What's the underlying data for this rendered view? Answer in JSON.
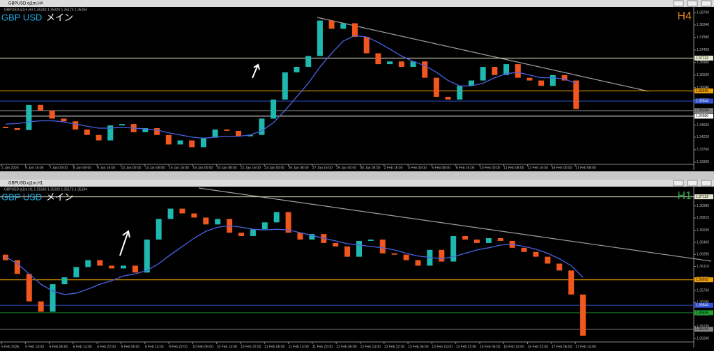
{
  "chart_data": [
    {
      "type": "candlestick",
      "window_title": "GBPUSD.oj1m,H4",
      "info": "GBPUSD.oj1m,H4  1.35243 1.35320 1.35173 1.35194",
      "symbol": "GBP USD",
      "label": "メイン",
      "timeframe": "H4",
      "timeframe_color": "#e08a1e",
      "up_color": "#1fb8b0",
      "down_color": "#f0561e",
      "ma_color": "#4a62e0",
      "prices": [
        1.346,
        1.3455,
        1.3448,
        1.354,
        1.352,
        1.349,
        1.348,
        1.345,
        1.343,
        1.341,
        1.3465,
        1.347,
        1.344,
        1.3455,
        1.343,
        1.3395,
        1.341,
        1.3385,
        1.342,
        1.345,
        1.3445,
        1.3425,
        1.343,
        1.349,
        1.356,
        1.366,
        1.368,
        1.372,
        1.385,
        1.382,
        1.384,
        1.379,
        1.373,
        1.369,
        1.37,
        1.368,
        1.37,
        1.364,
        1.357,
        1.356,
        1.361,
        1.363,
        1.368,
        1.365,
        1.369,
        1.364,
        1.363,
        1.361,
        1.365,
        1.363,
        1.3525
      ],
      "ma": [
        1.347,
        1.3472,
        1.3478,
        1.3482,
        1.3482,
        1.3478,
        1.347,
        1.3462,
        1.3455,
        1.3455,
        1.3458,
        1.3455,
        1.3452,
        1.3448,
        1.3438,
        1.343,
        1.3422,
        1.3418,
        1.3422,
        1.3425,
        1.3425,
        1.343,
        1.3445,
        1.3475,
        1.352,
        1.357,
        1.362,
        1.368,
        1.373,
        1.3775,
        1.3795,
        1.379,
        1.377,
        1.3745,
        1.372,
        1.37,
        1.3685,
        1.366,
        1.363,
        1.361,
        1.361,
        1.362,
        1.364,
        1.3655,
        1.366,
        1.365,
        1.364,
        1.364,
        1.3635,
        1.362
      ],
      "ylim": [
        1.3322,
        1.39
      ],
      "yticks": [
        {
          "value": 1.3879,
          "label": "1.38790"
        },
        {
          "value": 1.3834,
          "label": "1.38340"
        },
        {
          "value": 1.3788,
          "label": "1.37880"
        },
        {
          "value": 1.3742,
          "label": "1.37420"
        },
        {
          "value": 1.3696,
          "label": "1.36960"
        },
        {
          "value": 1.365,
          "label": "1.36500"
        },
        {
          "value": 1.3604,
          "label": "1.36040"
        },
        {
          "value": 1.3558,
          "label": "1.35580"
        },
        {
          "value": 1.3512,
          "label": "1.35120"
        },
        {
          "value": 1.3466,
          "label": "1.34660"
        },
        {
          "value": 1.3422,
          "label": "1.34220"
        },
        {
          "value": 1.3376,
          "label": "1.33760"
        },
        {
          "value": 1.333,
          "label": "1.33300"
        }
      ],
      "levels": [
        {
          "value": 1.37122,
          "label": "1.37122",
          "color": "#e8e8d0"
        },
        {
          "value": 1.35915,
          "label": "1.35915",
          "color": "#f0a000"
        },
        {
          "value": 1.35544,
          "label": "1.35544",
          "color": "#3050d0"
        },
        {
          "value": 1.35194,
          "label": "1.35194",
          "color": "#808080"
        },
        {
          "value": 1.3499,
          "label": "1.34990",
          "color": "#ffffff"
        }
      ],
      "x_labels": [
        "2 Jan 2026",
        "5 Jan 16:00",
        "7 Jan 00:00",
        "8 Jan 08:00",
        "9 Jan 16:00",
        "13 Jan 00:00",
        "14 Jan 08:00",
        "15 Jan 16:00",
        "19 Jan 00:00",
        "20 Jan 08:00",
        "21 Jan 16:00",
        "23 Jan 00:00",
        "26 Jan 08:00",
        "27 Jan 16:00",
        "29 Jan 00:00",
        "30 Jan 08:00",
        "2 Feb 16:00",
        "4 Feb 00:00",
        "5 Feb 08:00",
        "6 Feb 16:00",
        "10 Feb 00:00",
        "11 Feb 08:00",
        "12 Feb 16:00",
        "16 Feb 00:00",
        "17 Feb 08:00"
      ]
    },
    {
      "type": "candlestick",
      "window_title": "GBPUSD.oj1m,H1",
      "info": "GBPUSD.oj1m,H1  1.35243 1.35320 1.35173 1.35194",
      "symbol": "GBP USD",
      "label": "メイン",
      "timeframe": "H1",
      "timeframe_color": "#2fb04a",
      "up_color": "#1fb8b0",
      "down_color": "#f0561e",
      "ma_color": "#4a62e0",
      "prices": [
        1.3628,
        1.362,
        1.36,
        1.356,
        1.3545,
        1.3585,
        1.3595,
        1.361,
        1.362,
        1.3612,
        1.3608,
        1.3612,
        1.3602,
        1.365,
        1.368,
        1.3695,
        1.3688,
        1.3682,
        1.3672,
        1.368,
        1.366,
        1.3655,
        1.3665,
        1.3675,
        1.369,
        1.366,
        1.365,
        1.3658,
        1.3645,
        1.364,
        1.3625,
        1.3648,
        1.365,
        1.363,
        1.3628,
        1.362,
        1.3612,
        1.3635,
        1.3618,
        1.3655,
        1.365,
        1.3645,
        1.3652,
        1.3648,
        1.3638,
        1.3632,
        1.3625,
        1.3615,
        1.3605,
        1.357,
        1.351
      ],
      "ma": [
        1.3625,
        1.3615,
        1.36,
        1.3585,
        1.3575,
        1.357,
        1.3572,
        1.3578,
        1.3585,
        1.359,
        1.3597,
        1.36,
        1.3605,
        1.3615,
        1.3628,
        1.364,
        1.3652,
        1.3662,
        1.3668,
        1.367,
        1.3668,
        1.3665,
        1.3664,
        1.3665,
        1.3664,
        1.366,
        1.3656,
        1.3652,
        1.3648,
        1.3644,
        1.3642,
        1.364,
        1.3638,
        1.3635,
        1.363,
        1.3626,
        1.3624,
        1.3622,
        1.3625,
        1.363,
        1.3635,
        1.3638,
        1.3642,
        1.3643,
        1.364,
        1.3636,
        1.363,
        1.3622,
        1.3612,
        1.3595
      ],
      "ylim": [
        1.3501,
        1.3727
      ],
      "yticks": [
        {
          "value": 1.3699,
          "label": "1.36990"
        },
        {
          "value": 1.36815,
          "label": "1.36815"
        },
        {
          "value": 1.36635,
          "label": "1.36635"
        },
        {
          "value": 1.3646,
          "label": "1.36460"
        },
        {
          "value": 1.36285,
          "label": "1.36285"
        },
        {
          "value": 1.3611,
          "label": "1.36110"
        },
        {
          "value": 1.35935,
          "label": "1.35935"
        },
        {
          "value": 1.3576,
          "label": "1.35760"
        },
        {
          "value": 1.35585,
          "label": "1.35585"
        },
        {
          "value": 1.3541,
          "label": "1.35410"
        },
        {
          "value": 1.35235,
          "label": "1.35235"
        },
        {
          "value": 1.3506,
          "label": "1.35060"
        }
      ],
      "levels": [
        {
          "value": 1.37122,
          "label": "1.37122",
          "color": "#e8e8d0"
        },
        {
          "value": 1.35915,
          "label": "1.35915",
          "color": "#f0a000"
        },
        {
          "value": 1.35544,
          "label": "1.35544",
          "color": "#3050d0"
        },
        {
          "value": 1.35436,
          "label": "1.35436",
          "color": "#20a030"
        },
        {
          "value": 1.35194,
          "label": "1.35194",
          "color": "#808080"
        }
      ],
      "x_labels": [
        "5 Feb 2026",
        "5 Feb 14:00",
        "6 Feb 06:00",
        "6 Feb 14:00",
        "6 Feb 22:00",
        "9 Feb 06:00",
        "9 Feb 14:00",
        "9 Feb 22:00",
        "10 Feb 06:00",
        "10 Feb 14:00",
        "10 Feb 22:00",
        "11 Feb 06:00",
        "11 Feb 14:00",
        "11 Feb 22:00",
        "12 Feb 06:00",
        "12 Feb 14:00",
        "12 Feb 22:00",
        "13 Feb 06:00",
        "13 Feb 14:00",
        "13 Feb 22:00",
        "16 Feb 06:00",
        "16 Feb 14:00",
        "16 Feb 22:00",
        "17 Feb 06:00",
        "17 Feb 14:00"
      ]
    }
  ]
}
